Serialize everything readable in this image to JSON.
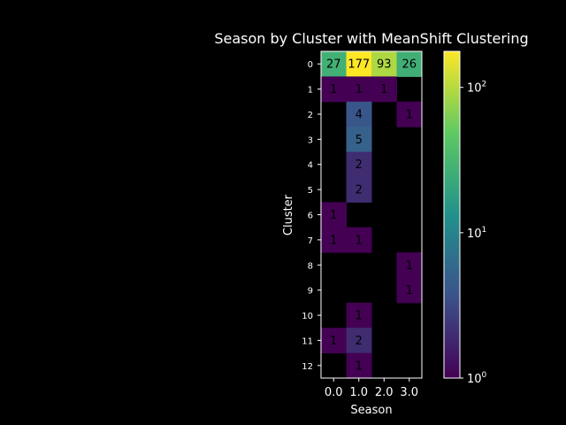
{
  "chart_data": {
    "type": "heatmap",
    "title": "Season by Cluster with MeanShift Clustering",
    "xlabel": "Season",
    "ylabel": "Cluster",
    "x_categories": [
      "0.0",
      "1.0",
      "2.0",
      "3.0"
    ],
    "y_categories": [
      "0",
      "1",
      "2",
      "3",
      "4",
      "5",
      "6",
      "7",
      "8",
      "9",
      "10",
      "11",
      "12"
    ],
    "values": [
      [
        27,
        177,
        93,
        26
      ],
      [
        1,
        1,
        1,
        null
      ],
      [
        null,
        4,
        null,
        1
      ],
      [
        null,
        5,
        null,
        null
      ],
      [
        null,
        2,
        null,
        null
      ],
      [
        null,
        2,
        null,
        null
      ],
      [
        1,
        null,
        null,
        null
      ],
      [
        1,
        1,
        null,
        null
      ],
      [
        null,
        null,
        null,
        1
      ],
      [
        null,
        null,
        null,
        1
      ],
      [
        null,
        1,
        null,
        null
      ],
      [
        1,
        2,
        null,
        null
      ],
      [
        null,
        1,
        null,
        null
      ]
    ],
    "colorbar": {
      "scale": "log",
      "min": 1,
      "max": 177,
      "colormap": "viridis",
      "ticks": [
        {
          "value": 1,
          "base": "10",
          "exp": "0"
        },
        {
          "value": 10,
          "base": "10",
          "exp": "1"
        },
        {
          "value": 100,
          "base": "10",
          "exp": "2"
        }
      ]
    },
    "colors": {
      "background": "#000000",
      "text": "#ffffff",
      "cell_text": "#000000"
    }
  }
}
